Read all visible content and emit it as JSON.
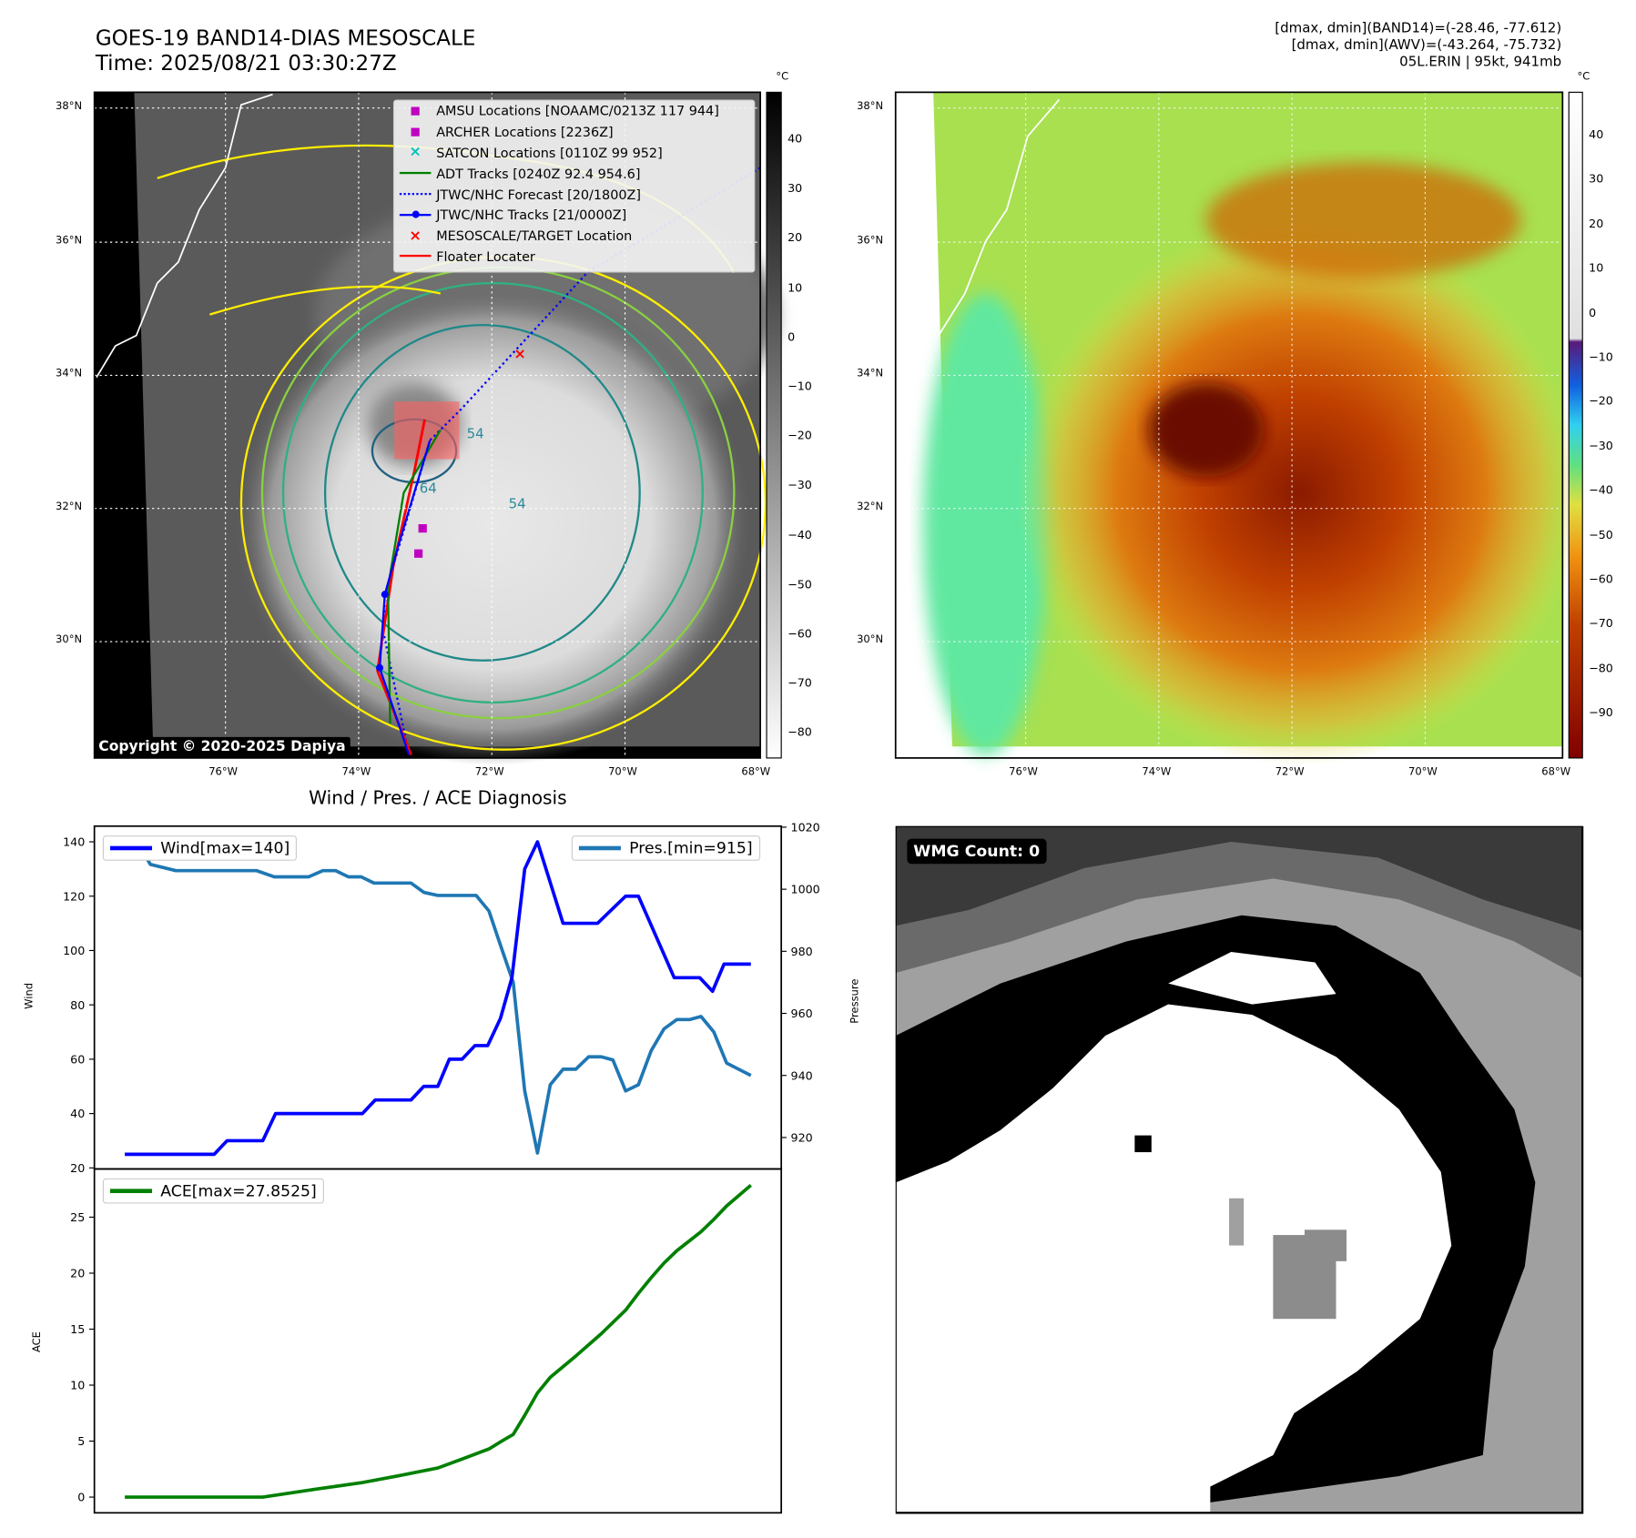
{
  "left_map": {
    "title_line1": "GOES-19 BAND14-DIAS MESOSCALE",
    "title_line2": "Time: 2025/08/21 03:30:27Z",
    "colorbar_unit": "°C",
    "colorbar_ticks": [
      "40",
      "30",
      "20",
      "10",
      "0",
      "−10",
      "−20",
      "−30",
      "−40",
      "−50",
      "−60",
      "−70",
      "−80"
    ],
    "lat_labels": [
      "38°N",
      "36°N",
      "34°N",
      "32°N",
      "30°N"
    ],
    "lon_labels": [
      "76°W",
      "74°W",
      "72°W",
      "70°W",
      "68°W"
    ],
    "copyright": "Copyright © 2020-2025 Dapiya",
    "contour_labels": [
      "54",
      "64",
      "54"
    ],
    "legend": [
      {
        "label": "AMSU Locations [NOAAMC/0213Z 117 944]",
        "symbol": "square",
        "color": "#c000c0"
      },
      {
        "label": "ARCHER Locations [2236Z]",
        "symbol": "square",
        "color": "#c000c0"
      },
      {
        "label": "SATCON Locations [0110Z 99 952]",
        "symbol": "x",
        "color": "#00c0c0"
      },
      {
        "label": "ADT Tracks [0240Z 92.4 954.6]",
        "symbol": "line",
        "color": "#008000"
      },
      {
        "label": "JTWC/NHC Forecast [20/1800Z]",
        "symbol": "dotted",
        "color": "#0000ff"
      },
      {
        "label": "JTWC/NHC Tracks [21/0000Z]",
        "symbol": "line-dot",
        "color": "#0000ff"
      },
      {
        "label": "MESOSCALE/TARGET Location",
        "symbol": "x",
        "color": "#ff0000"
      },
      {
        "label": "Floater Locater",
        "symbol": "line",
        "color": "#ff0000"
      }
    ]
  },
  "right_map": {
    "info_lines": [
      "[dmax, dmin](BAND14)=(-28.46, -77.612)",
      "[dmax, dmin](AWV)=(-43.264, -75.732)",
      "05L.ERIN | 95kt, 941mb"
    ],
    "colorbar_unit": "°C",
    "colorbar_ticks": [
      "40",
      "30",
      "20",
      "10",
      "0",
      "−10",
      "−20",
      "−30",
      "−40",
      "−50",
      "−60",
      "−70",
      "−80",
      "−90"
    ],
    "lat_labels": [
      "38°N",
      "36°N",
      "34°N",
      "32°N",
      "30°N"
    ],
    "lon_labels": [
      "76°W",
      "74°W",
      "72°W",
      "70°W",
      "68°W"
    ]
  },
  "wmg": {
    "label": "WMG Count: 0"
  },
  "chart_data": [
    {
      "type": "line",
      "title": "Wind / Pres. / ACE Diagnosis",
      "xlabel": "",
      "ylabel": "Wind",
      "ylabel_right": "Pressure",
      "ylim": [
        20,
        140
      ],
      "ylim_right": [
        915,
        1020
      ],
      "yticks": [
        20,
        40,
        60,
        80,
        100,
        120,
        140
      ],
      "yticks_right": [
        920,
        940,
        960,
        980,
        1000,
        1020
      ],
      "series": [
        {
          "name": "Wind[max=140]",
          "axis": "left",
          "color": "#0000ff",
          "x": [
            0,
            7,
            8,
            10.8,
            11.8,
            18.6,
            19.6,
            22.4,
            23.4,
            24.5,
            25.4,
            26.4,
            27.4,
            28.4,
            29.4,
            30.3,
            31.3,
            32.3,
            34.3,
            37,
            39.2,
            40.2,
            43,
            45,
            46,
            46.9,
            49
          ],
          "values": [
            25,
            25,
            30,
            30,
            40,
            40,
            45,
            45,
            50,
            50,
            60,
            60,
            65,
            65,
            75,
            90,
            130,
            140,
            110,
            110,
            120,
            120,
            90,
            90,
            85,
            95,
            95
          ]
        },
        {
          "name": "Pres.[min=915]",
          "axis": "right",
          "color": "#1f77b4",
          "x": [
            0,
            1,
            2,
            4,
            10.3,
            11.7,
            14.4,
            15.5,
            16.5,
            17.5,
            18.5,
            19.5,
            22.4,
            23.4,
            24.5,
            27.5,
            28.5,
            29.4,
            30.4,
            31.3,
            32.3,
            33.3,
            34.3,
            35.3,
            36.3,
            37.3,
            38.2,
            39.2,
            40.2,
            41.2,
            42.2,
            43.2,
            44.2,
            45.1,
            46.1,
            47.1,
            49
          ],
          "values": [
            1015,
            1015,
            1008,
            1006,
            1006,
            1004,
            1004,
            1006,
            1006,
            1004,
            1004,
            1002,
            1002,
            999,
            998,
            998,
            993,
            982,
            970,
            935,
            915,
            937,
            942,
            942,
            946,
            946,
            945,
            935,
            937,
            948,
            955,
            958,
            958,
            959,
            954,
            944,
            940
          ]
        }
      ]
    },
    {
      "type": "line",
      "ylabel": "ACE",
      "ylim": [
        -1.3,
        29.2
      ],
      "yticks": [
        0,
        5,
        10,
        15,
        20,
        25
      ],
      "series": [
        {
          "name": "ACE[max=27.8525]",
          "color": "#008000",
          "x": [
            0,
            10.8,
            14.9,
            18.6,
            21.4,
            24.5,
            26.4,
            28.5,
            29.5,
            30.4,
            31.3,
            32.3,
            33.3,
            35.3,
            37.3,
            39.2,
            40.2,
            41.2,
            42.2,
            43.2,
            45.1,
            46.1,
            47.1,
            49
          ],
          "values": [
            0,
            0,
            0.7,
            1.3,
            1.9,
            2.6,
            3.4,
            4.3,
            5,
            5.6,
            7.3,
            9.3,
            10.7,
            12.6,
            14.6,
            16.7,
            18.2,
            19.6,
            20.9,
            22,
            23.7,
            24.8,
            26,
            27.85
          ]
        }
      ]
    }
  ]
}
